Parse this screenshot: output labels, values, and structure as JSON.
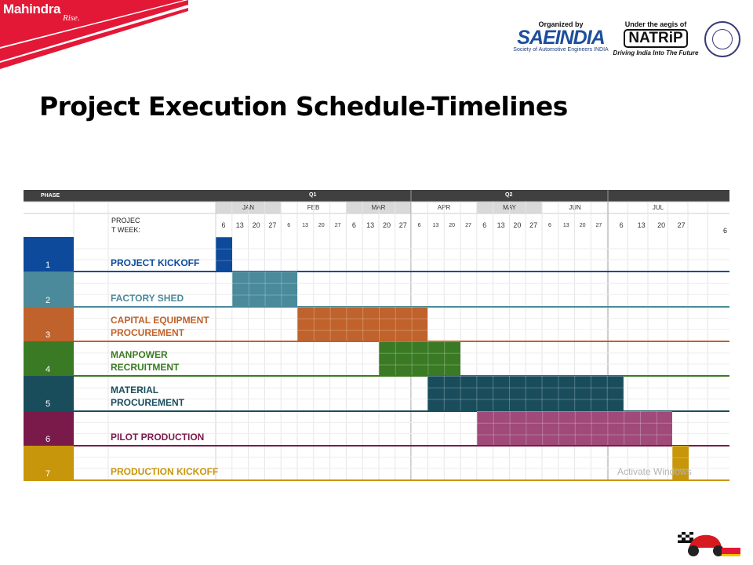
{
  "brand": {
    "name": "Mahindra",
    "tagline": "Rise."
  },
  "organizer": {
    "caption": "Organized by",
    "name": "SAEINDIA",
    "subtitle": "Society of Automotive Engineers INDIA"
  },
  "aegis": {
    "caption": "Under the aegis of",
    "name": "NATRiP",
    "tagline": "Driving India Into The Future"
  },
  "title": "Project Execution Schedule-Timelines",
  "schedule": {
    "phase_header": "PHASE",
    "quarters": [
      "Q1",
      "Q2"
    ],
    "months": [
      "JAN",
      "FEB",
      "MAR",
      "APR",
      "MAY",
      "JUN",
      "JUL"
    ],
    "week_label_line1": "PROJEC",
    "week_label_line2": "T WEEK:",
    "weeks": [
      "6",
      "13",
      "20",
      "27"
    ],
    "jul_trailing_week": "6",
    "phases": [
      {
        "number": "1",
        "name_line1": "PROJECT KICKOFF",
        "name_line2": "",
        "color": "#0d4a9c",
        "bar_color": "#0d4a9c",
        "start_week": 1,
        "end_week": 1
      },
      {
        "number": "2",
        "name_line1": "FACTORY SHED",
        "name_line2": "",
        "color": "#4a8a9a",
        "bar_color": "#4a8a9a",
        "start_week": 2,
        "end_week": 5
      },
      {
        "number": "3",
        "name_line1": "CAPITAL EQUIPMENT",
        "name_line2": "PROCUREMENT",
        "color": "#c0622b",
        "bar_color": "#c0622b",
        "start_week": 6,
        "end_week": 13
      },
      {
        "number": "4",
        "name_line1": "MANPOWER",
        "name_line2": "RECRUITMENT",
        "color": "#3b7a24",
        "bar_color": "#3b7a24",
        "start_week": 11,
        "end_week": 15
      },
      {
        "number": "5",
        "name_line1": "MATERIAL",
        "name_line2": "PROCUREMENT",
        "color": "#1a4d5c",
        "bar_color": "#1a4d5c",
        "start_week": 14,
        "end_week": 25
      },
      {
        "number": "6",
        "name_line1": "PILOT PRODUCTION",
        "name_line2": "",
        "color": "#7a1a4a",
        "bar_color": "#a04a7a",
        "start_week": 17,
        "end_week": 28
      },
      {
        "number": "7",
        "name_line1": "PRODUCTION KICKOFF",
        "name_line2": "",
        "color": "#c8960a",
        "bar_color": "#c8960a",
        "start_week": 29,
        "end_week": 29
      }
    ],
    "watermark": "Activate Windows"
  },
  "colors": {
    "header_dark": "#404040",
    "header_month_shade": "#d9d9d9",
    "brand_red": "#e31837"
  }
}
